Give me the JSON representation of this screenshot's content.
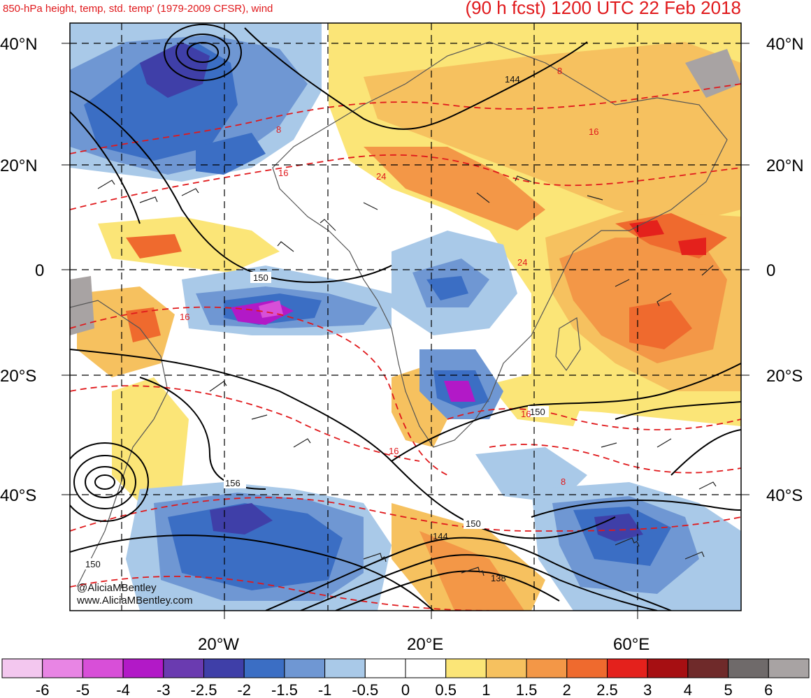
{
  "header": {
    "left_title": "850-hPa height, temp, std. temp' (1979-2009 CFSR), wind",
    "right_title": "(90 h fcst) 1200 UTC 22 Feb 2018"
  },
  "latitude_labels": [
    "40°N",
    "20°N",
    "0",
    "20°S",
    "40°S"
  ],
  "longitude_labels": [
    "20°W",
    "20°E",
    "60°E"
  ],
  "height_contour_labels": [
    "150",
    "144",
    "150",
    "156",
    "150",
    "150",
    "144",
    "138"
  ],
  "temperature_contour_labels": [
    "8",
    "8",
    "16",
    "16",
    "24",
    "24",
    "16",
    "16",
    "16",
    "8"
  ],
  "credit": {
    "line1": "@AliciaMBentley",
    "line2": "www.AliciaMBentley.com"
  },
  "colorbar": {
    "labels": [
      "-6",
      "-5",
      "-4",
      "-3",
      "-2.5",
      "-2",
      "-1.5",
      "-1",
      "-0.5",
      "0",
      "0.5",
      "1",
      "1.5",
      "2",
      "2.5",
      "3",
      "4",
      "5",
      "6"
    ],
    "colors": [
      "#f3c7ef",
      "#e885e4",
      "#d84fd8",
      "#b219c7",
      "#6a3bb0",
      "#3f3fa8",
      "#3b6ec4",
      "#6f97d3",
      "#a9c9e8",
      "#ffffff",
      "#ffffff",
      "#fbe577",
      "#f6c15f",
      "#f39747",
      "#ef6a2e",
      "#e4211c",
      "#a60f12",
      "#6f2a2a",
      "#6f6a6a",
      "#a8a3a3"
    ]
  }
}
